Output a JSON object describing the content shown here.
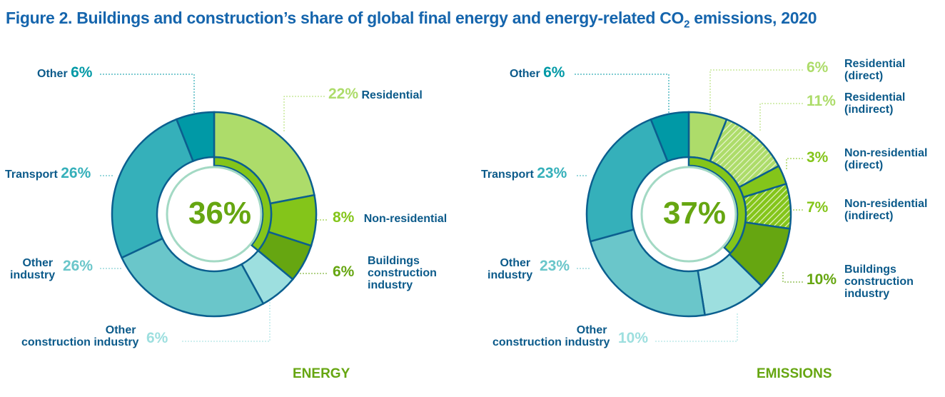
{
  "title_prefix": "Figure 2. Buildings and construction’s share of global final energy and energy-related CO",
  "title_sub": "2",
  "title_suffix": " emissions, 2020",
  "colors": {
    "residential": "#addc6a",
    "non_residential": "#84c51a",
    "buildings_construction": "#66a611",
    "other_construction": "#9ddfdf",
    "other_industry": "#6ac6ca",
    "transport": "#35b0ba",
    "other": "#0099a6",
    "outline": "#0b5f8f",
    "title": "#1565ad"
  },
  "chart_data": [
    {
      "type": "pie",
      "caption": "ENERGY",
      "center_label": "36%",
      "buildings_share": 36,
      "categories": [
        "Residential",
        "Non-residential",
        "Buildings construction industry",
        "Other construction industry",
        "Other industry",
        "Transport",
        "Other"
      ],
      "values": [
        22,
        8,
        6,
        6,
        26,
        26,
        6
      ],
      "labels": [
        "22%",
        "8%",
        "6%",
        "6%",
        "26%",
        "26%",
        "6%"
      ],
      "hatched": [
        false,
        false,
        false,
        false,
        false,
        false,
        false
      ],
      "fills": [
        "#addc6a",
        "#84c51a",
        "#66a611",
        "#9ddfdf",
        "#6ac6ca",
        "#35b0ba",
        "#0099a6"
      ]
    },
    {
      "type": "pie",
      "caption": "EMISSIONS",
      "center_label": "37%",
      "buildings_share": 37,
      "categories": [
        "Residential (direct)",
        "Residential (indirect)",
        "Non-residential (direct)",
        "Non-residential (indirect)",
        "Buildings construction industry",
        "Other construction industry",
        "Other industry",
        "Transport",
        "Other"
      ],
      "values": [
        6,
        11,
        3,
        7,
        10,
        10,
        23,
        23,
        6
      ],
      "labels": [
        "6%",
        "11%",
        "3%",
        "7%",
        "10%",
        "10%",
        "23%",
        "23%",
        "6%"
      ],
      "hatched": [
        false,
        true,
        false,
        true,
        false,
        false,
        false,
        false,
        false
      ],
      "fills": [
        "#addc6a",
        "#addc6a",
        "#84c51a",
        "#84c51a",
        "#66a611",
        "#9ddfdf",
        "#6ac6ca",
        "#35b0ba",
        "#0099a6"
      ]
    }
  ],
  "energy_labels": {
    "other": "Other",
    "residential": "Residential",
    "non_residential": "Non-residential",
    "bci_1": "Buildings",
    "bci_2": "construction",
    "bci_3": "industry",
    "other_construction_1": "Other",
    "other_construction_2": "construction industry",
    "other_industry_1": "Other",
    "other_industry_2": "industry",
    "transport": "Transport"
  },
  "emissions_labels": {
    "other": "Other",
    "res_direct_1": "Residential",
    "res_direct_2": "(direct)",
    "res_indirect_1": "Residential",
    "res_indirect_2": "(indirect)",
    "nonres_direct_1": "Non-residential",
    "nonres_direct_2": "(direct)",
    "nonres_indirect_1": "Non-residential",
    "nonres_indirect_2": "(indirect)",
    "bci_1": "Buildings",
    "bci_2": "construction",
    "bci_3": "industry",
    "other_construction_1": "Other",
    "other_construction_2": "construction industry",
    "other_industry_1": "Other",
    "other_industry_2": "industry",
    "transport": "Transport"
  }
}
